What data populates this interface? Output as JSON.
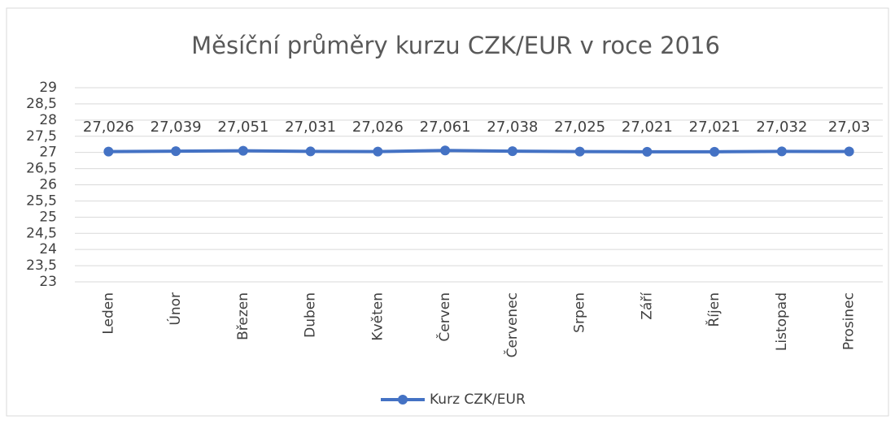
{
  "chart_data": {
    "type": "line",
    "title": "Měsíční průměry kurzu CZK/EUR v roce 2016",
    "categories": [
      "Leden",
      "Únor",
      "Březen",
      "Duben",
      "Květen",
      "Červen",
      "Červenec",
      "Srpen",
      "Září",
      "Říjen",
      "Listopad",
      "Prosinec"
    ],
    "series": [
      {
        "name": "Kurz CZK/EUR",
        "color": "#4472c4",
        "values": [
          27.026,
          27.039,
          27.051,
          27.031,
          27.026,
          27.061,
          27.038,
          27.025,
          27.021,
          27.021,
          27.032,
          27.03
        ],
        "value_labels": [
          "27,026",
          "27,039",
          "27,051",
          "27,031",
          "27,026",
          "27,061",
          "27,038",
          "27,025",
          "27,021",
          "27,021",
          "27,032",
          "27,03"
        ]
      }
    ],
    "ylim": [
      23,
      29
    ],
    "yticks": [
      23,
      {
        "value": 23.5,
        "label": "23,5"
      },
      24,
      {
        "value": 24.5,
        "label": "24,5"
      },
      25,
      {
        "value": 25.5,
        "label": "25,5"
      },
      26,
      {
        "value": 26.5,
        "label": "26,5"
      },
      27,
      {
        "value": 27.5,
        "label": "27,5"
      },
      28,
      {
        "value": 28.5,
        "label": "28,5"
      },
      29
    ],
    "grid": true,
    "legend": "bottom"
  }
}
